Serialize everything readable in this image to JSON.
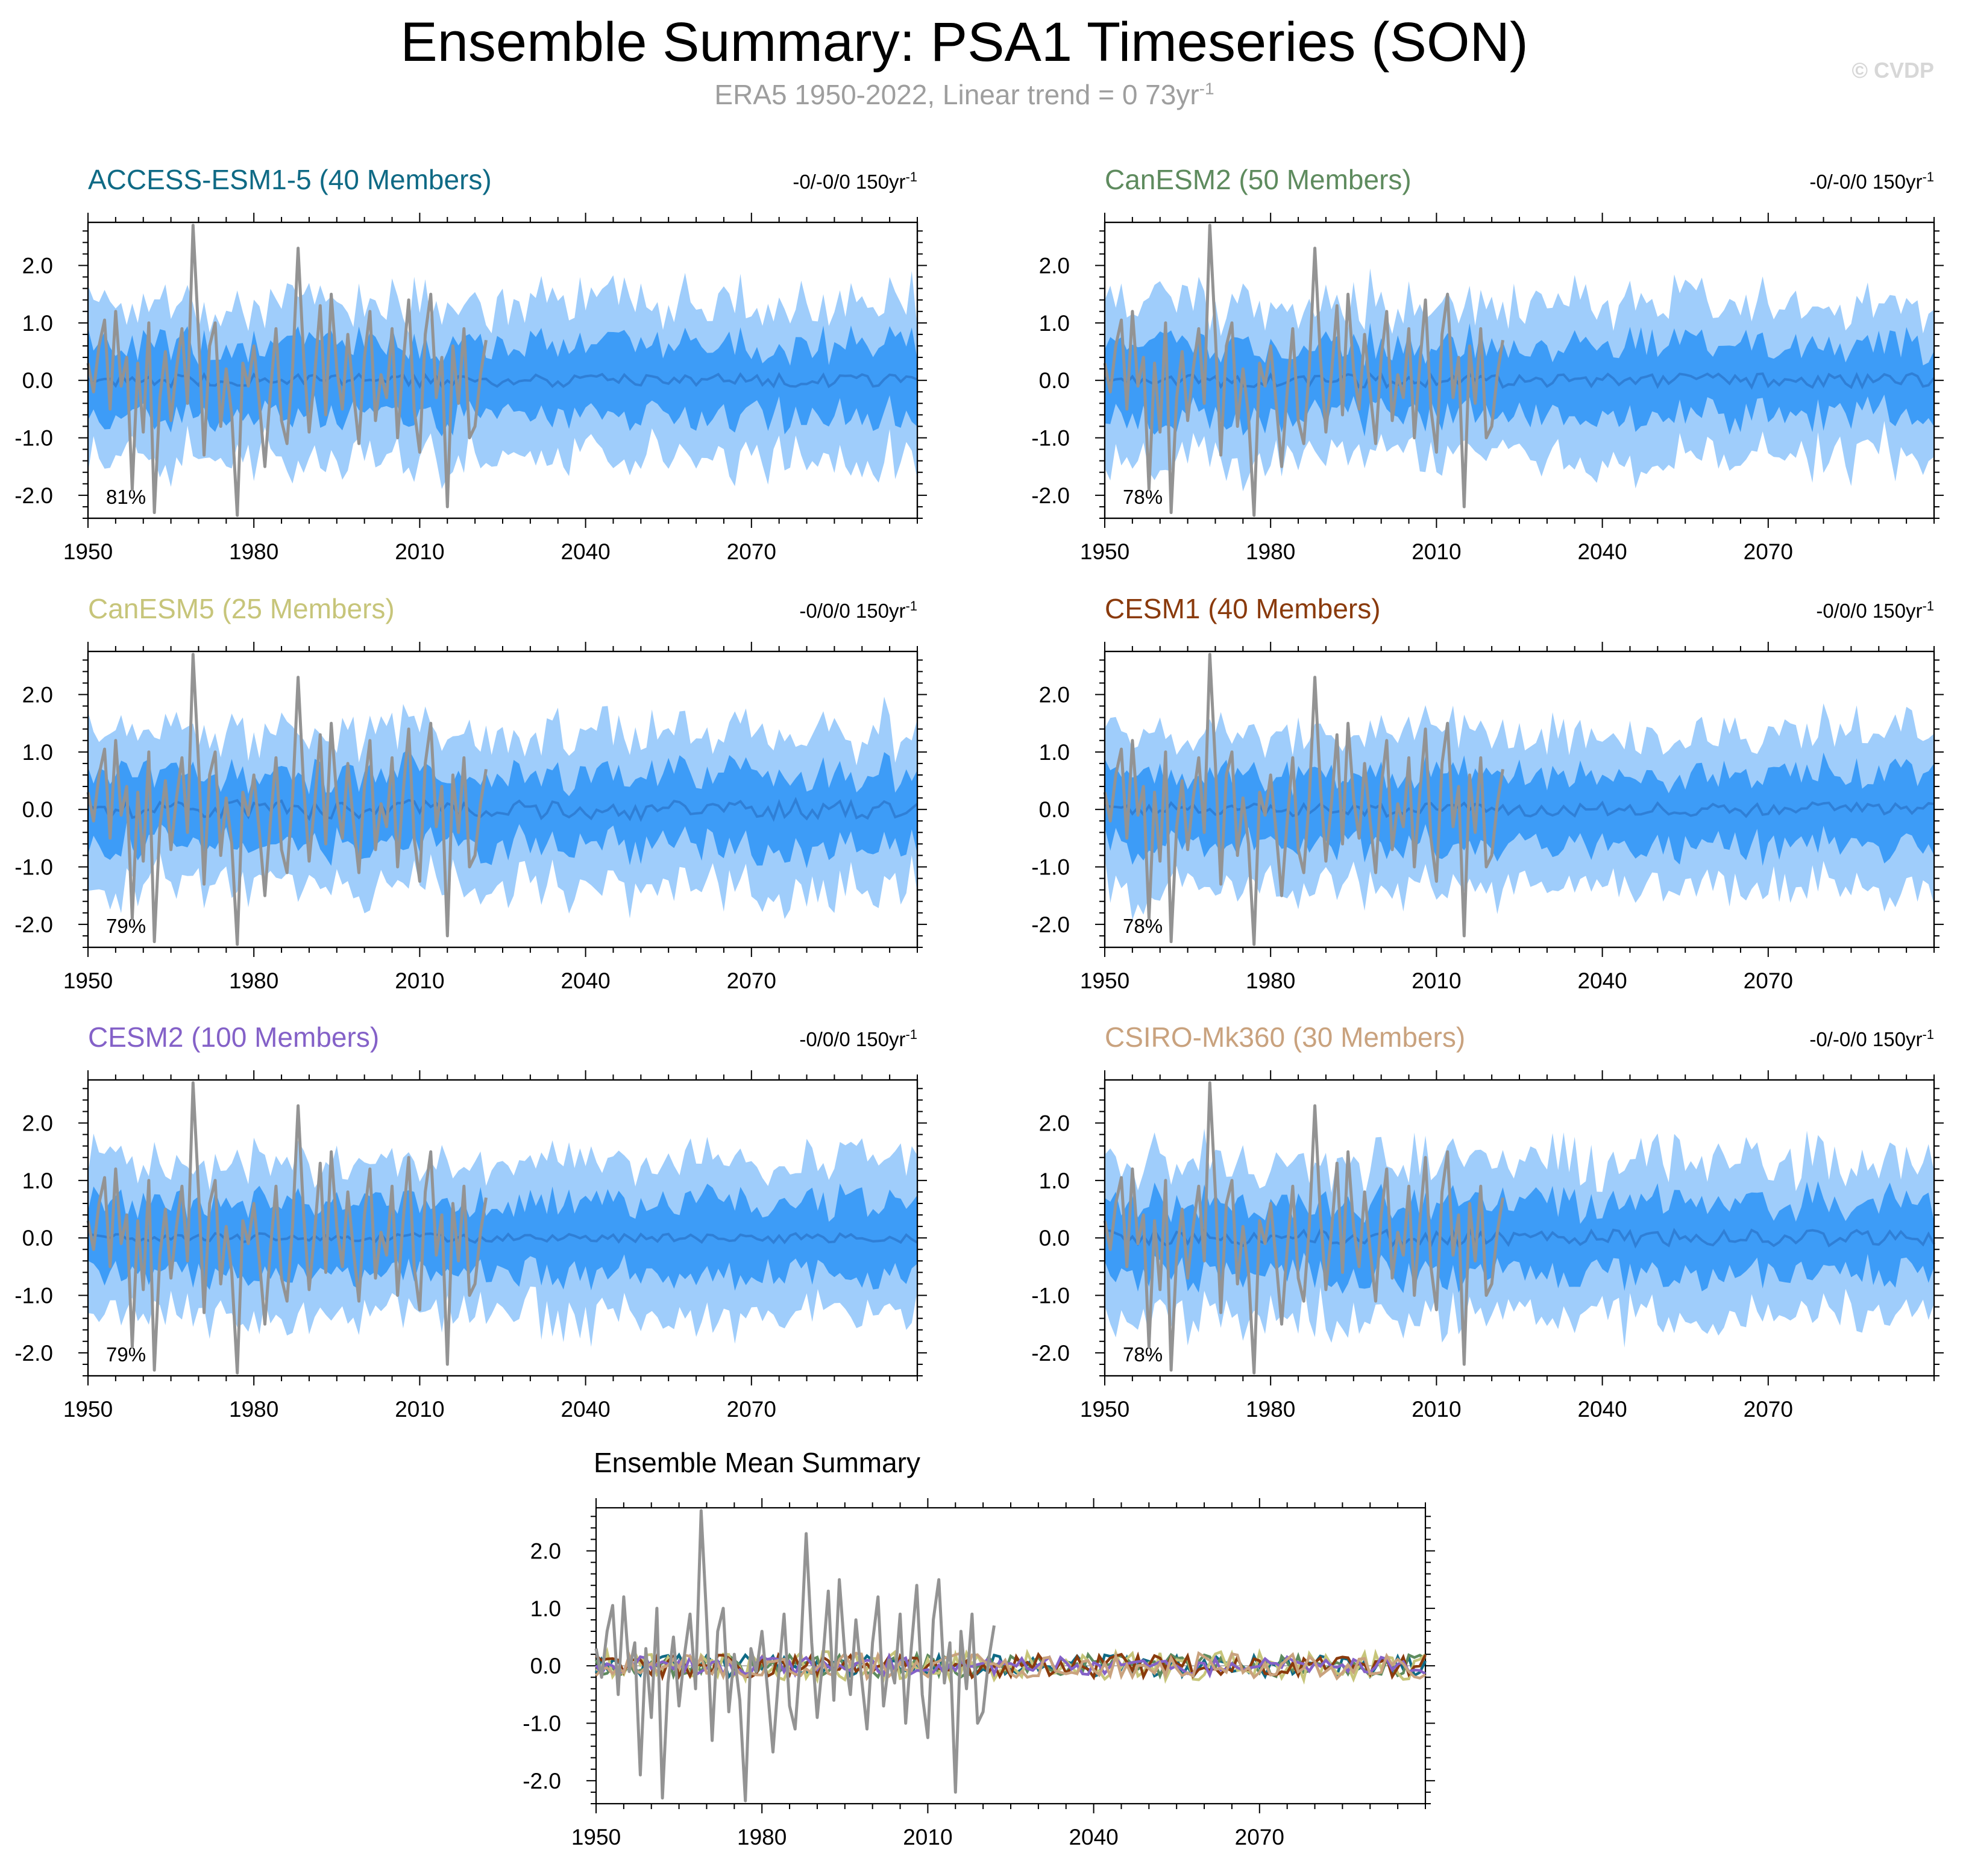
{
  "title": "Ensemble Summary: PSA1 Timeseries (SON)",
  "subtitle": "ERA5 1950-2022, Linear trend = 0 73yr",
  "subtitle_sup": "-1",
  "watermark": "© CVDP",
  "colors": {
    "band_outer": "#9fcdfb",
    "band_inner": "#3d9cf7",
    "ensemble_mean": "#2f7fd6",
    "observed": "#939393"
  },
  "chart_data": {
    "type": "line",
    "x_range": [
      1950,
      2100
    ],
    "ylim": [
      -2.4,
      2.75
    ],
    "x_ticks": [
      "1950",
      "1980",
      "2010",
      "2040",
      "2070"
    ],
    "y_ticks": [
      "2.0",
      "1.0",
      "0.0",
      "-1.0",
      "-2.0"
    ],
    "observed_series": {
      "x_start": 1950,
      "values": [
        0.3,
        -0.2,
        0.6,
        1.05,
        -0.5,
        1.2,
        -0.1,
        0.4,
        -1.9,
        0.3,
        -0.9,
        1.0,
        -2.3,
        -0.3,
        0.5,
        -0.7,
        0.2,
        0.9,
        -0.4,
        2.7,
        0.8,
        -1.3,
        0.6,
        1.0,
        -0.8,
        0.2,
        -0.6,
        -2.35,
        0.3,
        -0.1,
        0.6,
        -0.4,
        -1.5,
        -0.2,
        0.9,
        -0.7,
        -1.1,
        0.2,
        2.3,
        0.4,
        -0.9,
        0.1,
        1.3,
        -0.6,
        1.5,
        0.2,
        -0.5,
        0.8,
        -0.2,
        -1.1,
        0.4,
        1.2,
        -0.7,
        0.1,
        -0.3,
        0.9,
        -1.0,
        0.3,
        1.4,
        -0.5,
        -1.25,
        0.8,
        1.5,
        -0.3,
        0.4,
        -2.2,
        0.6,
        -0.4,
        0.9,
        -1.0,
        -0.8,
        0.1,
        0.7
      ]
    },
    "panels": [
      {
        "title": "ACCESS-ESM1-5 (40 Members)",
        "title_color": "#0f6a85",
        "trend": "-0/-0/0 150yr",
        "trend_sup": "-1",
        "pct": "81%",
        "member_count": 40,
        "mean_amp": 0.11
      },
      {
        "title": "CanESM2 (50 Members)",
        "title_color": "#5e8b5e",
        "trend": "-0/-0/0 150yr",
        "trend_sup": "-1",
        "pct": "78%",
        "member_count": 50,
        "mean_amp": 0.12
      },
      {
        "title": "CanESM5 (25 Members)",
        "title_color": "#c7c57a",
        "trend": "-0/0/0 150yr",
        "trend_sup": "-1",
        "pct": "79%",
        "member_count": 25,
        "mean_amp": 0.17
      },
      {
        "title": "CESM1 (40 Members)",
        "title_color": "#8a3a0c",
        "trend": "-0/0/0 150yr",
        "trend_sup": "-1",
        "pct": "78%",
        "member_count": 40,
        "mean_amp": 0.12
      },
      {
        "title": "CESM2 (100 Members)",
        "title_color": "#8461c8",
        "trend": "-0/0/0 150yr",
        "trend_sup": "-1",
        "pct": "79%",
        "member_count": 100,
        "mean_amp": 0.08
      },
      {
        "title": "CSIRO-Mk360 (30 Members)",
        "title_color": "#c9a27e",
        "trend": "-0/-0/0 150yr",
        "trend_sup": "-1",
        "pct": "78%",
        "member_count": 30,
        "mean_amp": 0.14
      }
    ],
    "mean_summary": {
      "title": "Ensemble Mean Summary",
      "series_colors": [
        "#0f6a85",
        "#5e8b5e",
        "#c7c57a",
        "#8a3a0c",
        "#8461c8",
        "#c9a27e"
      ]
    }
  }
}
